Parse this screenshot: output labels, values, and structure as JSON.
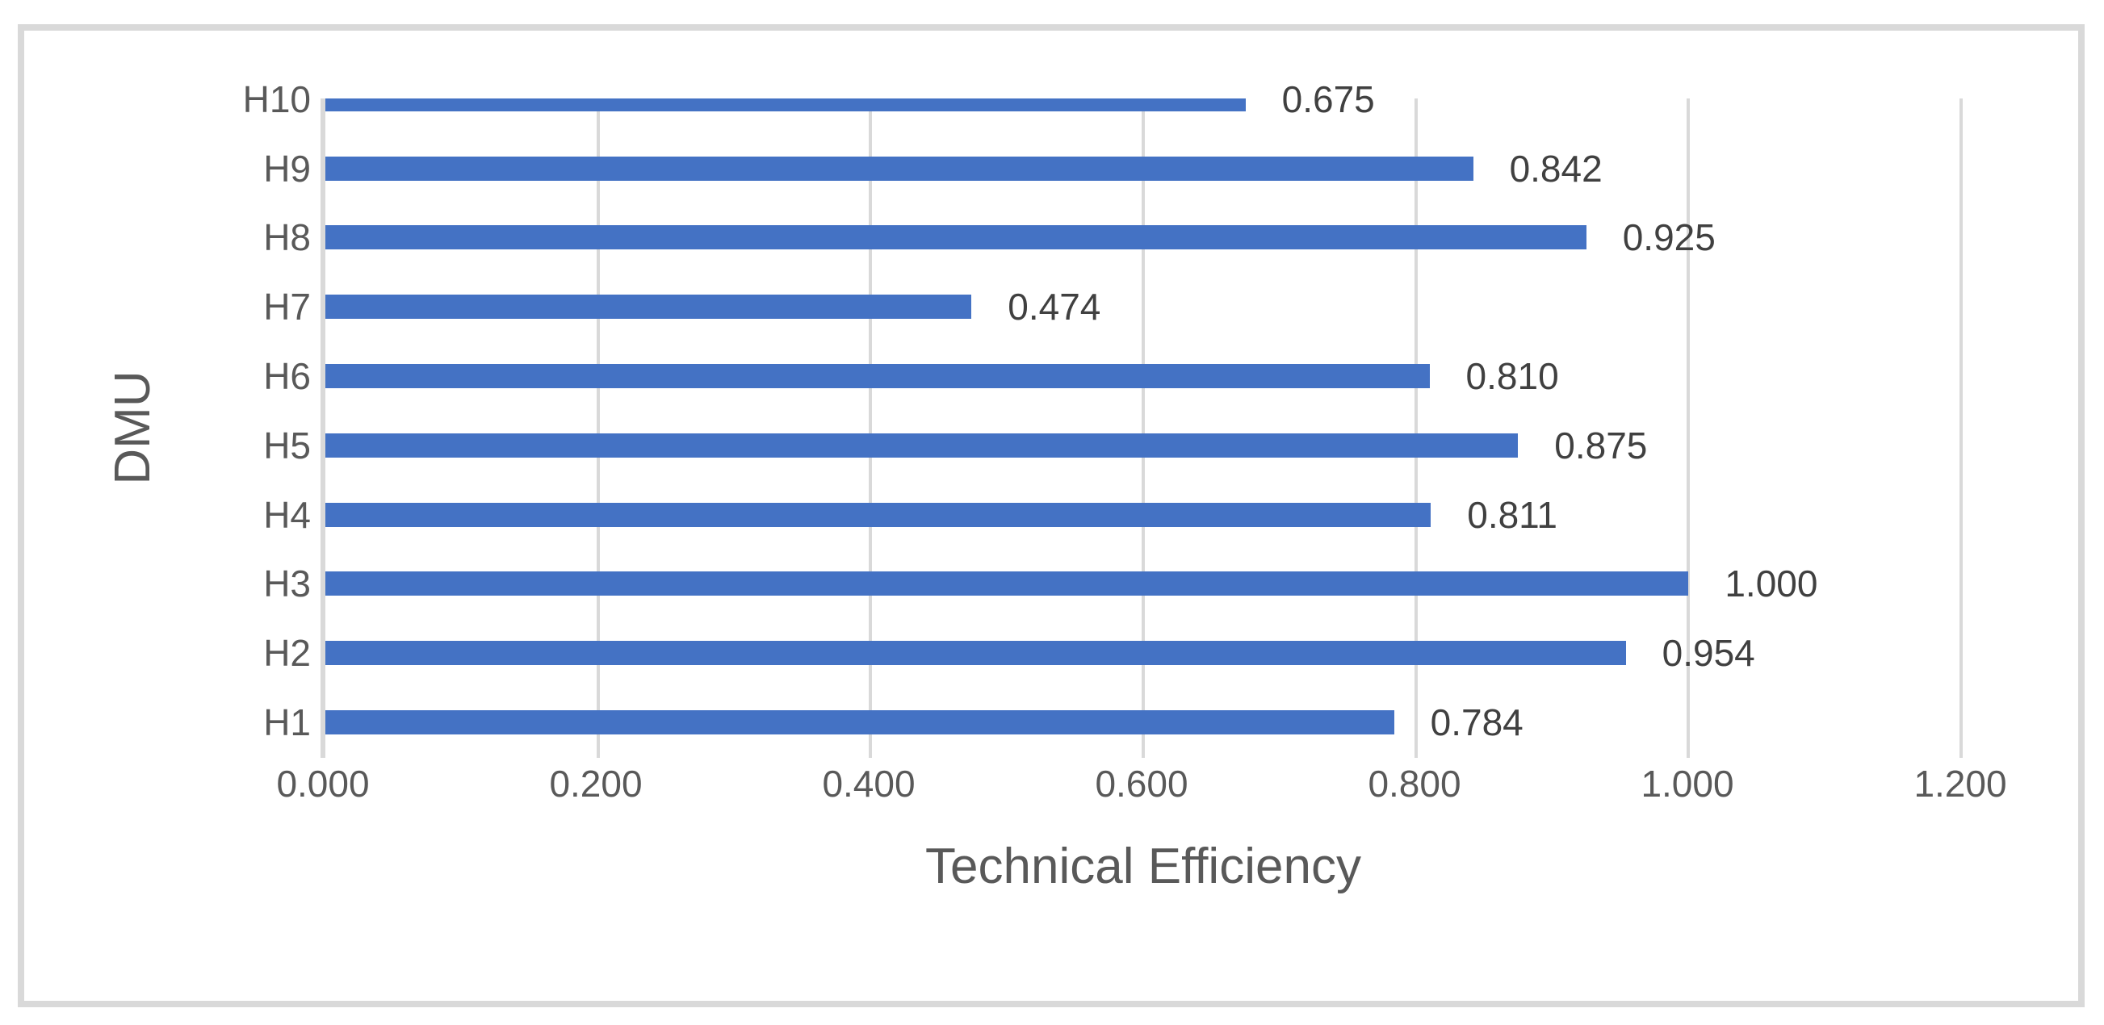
{
  "chart_data": {
    "type": "bar",
    "orientation": "horizontal",
    "title": "",
    "xlabel": "Technical Efficiency",
    "ylabel": "DMU",
    "categories_top_to_bottom": [
      "H10",
      "H9",
      "H8",
      "H7",
      "H6",
      "H5",
      "H4",
      "H3",
      "H2",
      "H1"
    ],
    "values_top_to_bottom": [
      0.675,
      0.842,
      0.925,
      0.474,
      0.81,
      0.875,
      0.811,
      1.0,
      0.954,
      0.784
    ],
    "data_labels_top_to_bottom": [
      "0.675",
      "0.842",
      "0.925",
      "0.474",
      "0.810",
      "0.875",
      "0.811",
      "1.000",
      "0.954",
      "0.784"
    ],
    "xlim": [
      0,
      1.2
    ],
    "x_tick_step": 0.2,
    "x_tick_labels": [
      "0.000",
      "0.200",
      "0.400",
      "0.600",
      "0.800",
      "1.000",
      "1.200"
    ],
    "grid": "vertical-major-gridlines",
    "legend": "none",
    "data_label_position": "outside-end",
    "colors": {
      "bar": "#4472C4",
      "gridline": "#D9D9D9",
      "axis_line": "#D9D9D9",
      "tick_text": "#595959",
      "axis_title_text": "#595959",
      "data_label_text": "#404040",
      "border": "#D9D9D9",
      "background": "#FFFFFF"
    }
  }
}
